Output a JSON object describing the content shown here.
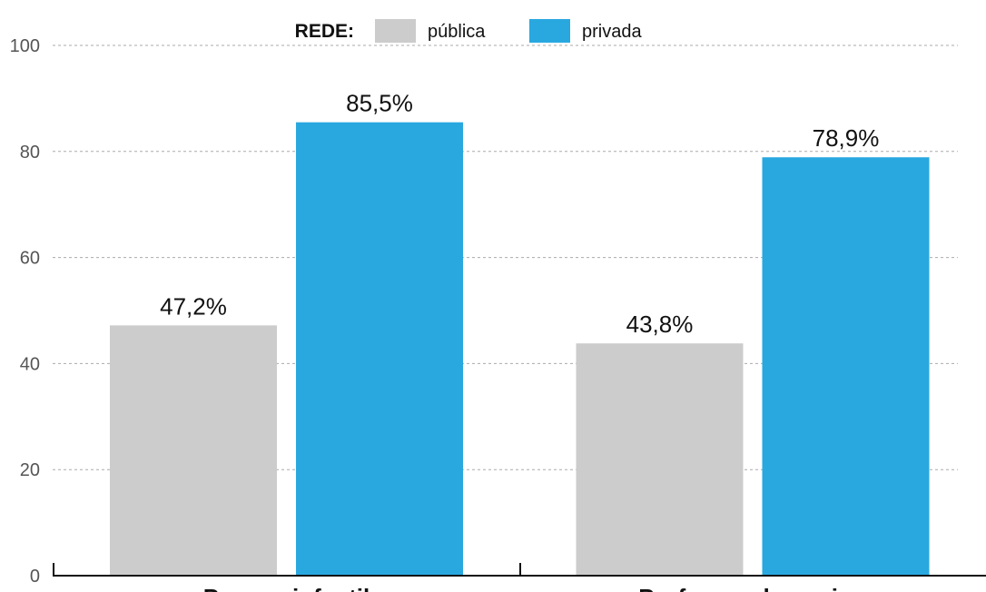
{
  "chart_data": {
    "type": "bar",
    "title": "",
    "xlabel": "",
    "ylabel": "",
    "ylim": [
      0,
      100
    ],
    "yticks": [
      0,
      20,
      40,
      60,
      80,
      100
    ],
    "grid": true,
    "legend_title": "REDE:",
    "legend_position": "top",
    "categories": [
      "Pessoa infantil",
      "Professor do ensino"
    ],
    "series": [
      {
        "name": "pública",
        "color": "#cccccc",
        "values": [
          47.2,
          43.8
        ],
        "labels": [
          "47,2%",
          "43,8%"
        ]
      },
      {
        "name": "privada",
        "color": "#29a8e0",
        "values": [
          85.5,
          78.9
        ],
        "labels": [
          "85,5%",
          "78,9%"
        ]
      }
    ]
  }
}
